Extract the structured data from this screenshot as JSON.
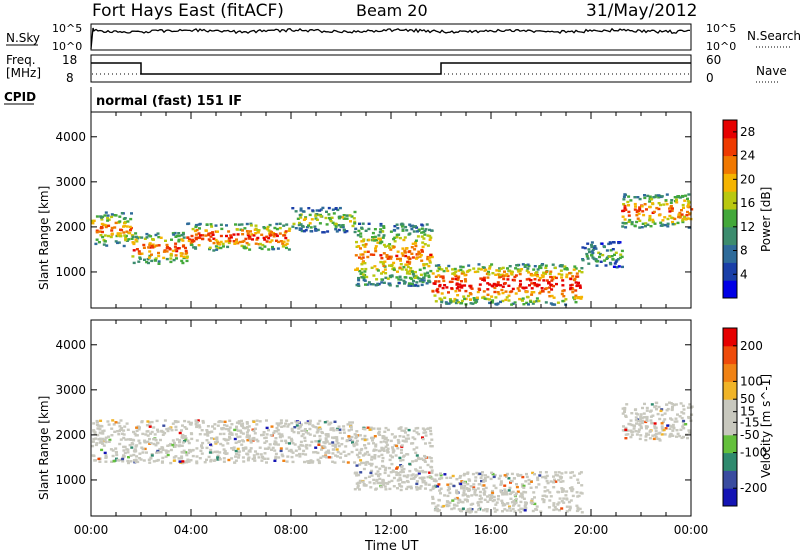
{
  "header": {
    "station": "Fort Hays East (fitACF)",
    "beam": "Beam 20",
    "date": "31/May/2012"
  },
  "panels": {
    "nsky": {
      "label": "N.Sky",
      "tick_top": "10^5",
      "tick_bottom": "10^0",
      "right_tick_top": "10^5",
      "right_tick_bottom": "10^0",
      "right_label": "N.Search"
    },
    "freq": {
      "label_line1": "Freq.",
      "label_line2": "[MHz]",
      "tick_top": "18",
      "tick_bottom": "8",
      "right_tick_top": "60",
      "right_tick_bottom": "0",
      "right_label": "Nave"
    },
    "cpid": {
      "label": "CPID",
      "value": "normal (fast) 151 IF"
    }
  },
  "colors": {
    "power": [
      "#0000e6",
      "#1a3fa8",
      "#2e6b9a",
      "#3c8c6e",
      "#43a83a",
      "#b9c80f",
      "#f5b400",
      "#f07800",
      "#ee3a00",
      "#e60000"
    ],
    "velocity": [
      "#1414b4",
      "#3a4ca0",
      "#2f8a6e",
      "#64c03c",
      "#c8c8be",
      "#c8c8be",
      "#f0b428",
      "#f08214",
      "#ee4b0a",
      "#e60000"
    ]
  },
  "chart_data": [
    {
      "type": "heatmap",
      "title": "",
      "xlabel": "",
      "ylabel": "Slant Range [km]",
      "x_ticks": [
        "00:00",
        "04:00",
        "08:00",
        "12:00",
        "16:00",
        "20:00",
        "00:00"
      ],
      "y_ticks": [
        1000,
        2000,
        3000,
        4000
      ],
      "ylim": [
        200,
        4550
      ],
      "colorbar": {
        "label": "Power [dB]",
        "ticks": [
          4,
          8,
          12,
          16,
          20,
          24,
          28
        ],
        "range": [
          0,
          30
        ]
      },
      "regions": [
        {
          "hours": [
            0.0,
            1.6
          ],
          "range_km": [
            1600,
            2350
          ],
          "level": 22
        },
        {
          "hours": [
            1.6,
            3.8
          ],
          "range_km": [
            1200,
            1900
          ],
          "level": 24
        },
        {
          "hours": [
            3.8,
            8.0
          ],
          "range_km": [
            1500,
            2100
          ],
          "level": 26
        },
        {
          "hours": [
            8.0,
            10.5
          ],
          "range_km": [
            1900,
            2450
          ],
          "level": 16
        },
        {
          "hours": [
            10.5,
            13.6
          ],
          "range_km": [
            700,
            2100
          ],
          "level": 22
        },
        {
          "hours": [
            13.6,
            19.6
          ],
          "range_km": [
            300,
            1200
          ],
          "level": 28
        },
        {
          "hours": [
            19.6,
            21.2
          ],
          "range_km": [
            1100,
            1700
          ],
          "level": 12
        },
        {
          "hours": [
            21.2,
            24.0
          ],
          "range_km": [
            2000,
            2750
          ],
          "level": 24
        }
      ]
    },
    {
      "type": "heatmap",
      "title": "",
      "xlabel": "Time UT",
      "ylabel": "Slant Range [km]",
      "x_ticks": [
        "00:00",
        "04:00",
        "08:00",
        "12:00",
        "16:00",
        "20:00",
        "00:00"
      ],
      "y_ticks": [
        1000,
        2000,
        3000,
        4000
      ],
      "ylim": [
        200,
        4550
      ],
      "colorbar": {
        "label": "Velocity [m s^-1]",
        "ticks": [
          200,
          100,
          50,
          15,
          -15,
          -50,
          -100,
          -200
        ],
        "range": [
          -250,
          250
        ]
      },
      "regions": [
        {
          "hours": [
            0.0,
            10.5
          ],
          "range_km": [
            1400,
            2350
          ],
          "level": 0
        },
        {
          "hours": [
            10.5,
            13.6
          ],
          "range_km": [
            800,
            2200
          ],
          "level": 0
        },
        {
          "hours": [
            13.6,
            19.6
          ],
          "range_km": [
            300,
            1200
          ],
          "level": 0
        },
        {
          "hours": [
            21.2,
            24.0
          ],
          "range_km": [
            1900,
            2750
          ],
          "level": 0
        }
      ]
    }
  ]
}
